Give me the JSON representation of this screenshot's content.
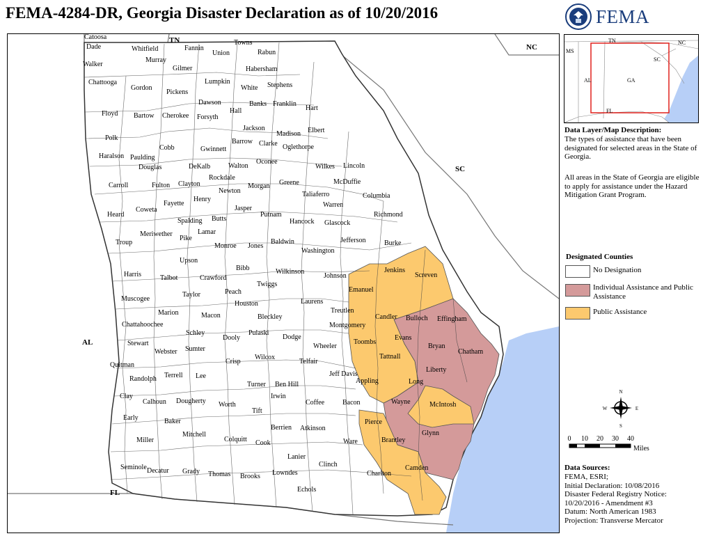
{
  "title": "FEMA-4284-DR, Georgia Disaster Declaration as of 10/20/2016",
  "logo": {
    "text": "FEMA"
  },
  "map": {
    "states": [
      "TN",
      "NC",
      "SC",
      "AL",
      "FL"
    ],
    "counties_none": [
      "Dade",
      "Catoosa",
      "Walker",
      "Whitfield",
      "Murray",
      "Fannin",
      "Union",
      "Towns",
      "Rabun",
      "Gilmer",
      "Chattooga",
      "Gordon",
      "Pickens",
      "Lumpkin",
      "White",
      "Habersham",
      "Stephens",
      "Floyd",
      "Bartow",
      "Cherokee",
      "Dawson",
      "Forsyth",
      "Hall",
      "Banks",
      "Franklin",
      "Hart",
      "Polk",
      "Cobb",
      "Gwinnett",
      "Jackson",
      "Madison",
      "Elbert",
      "Haralson",
      "Paulding",
      "Douglas",
      "Barrow",
      "Clarke",
      "Oglethorpe",
      "DeKalb",
      "Walton",
      "Oconee",
      "Wilkes",
      "Lincoln",
      "Carroll",
      "Fulton",
      "Clayton",
      "Rockdale",
      "Morgan",
      "Greene",
      "McDuffie",
      "Columbia",
      "Newton",
      "Henry",
      "Taliaferro",
      "Warren",
      "Richmond",
      "Heard",
      "Coweta",
      "Fayette",
      "Jasper",
      "Putnam",
      "Hancock",
      "Glascock",
      "Spalding",
      "Butts",
      "Meriwether",
      "Pike",
      "Lamar",
      "Monroe",
      "Jones",
      "Baldwin",
      "Washington",
      "Jefferson",
      "Burke",
      "Troup",
      "Upson",
      "Bibb",
      "Wilkinson",
      "Johnson",
      "Harris",
      "Talbot",
      "Crawford",
      "Twiggs",
      "Muscogee",
      "Taylor",
      "Peach",
      "Houston",
      "Laurens",
      "Marion",
      "Chattahoochee",
      "Macon",
      "Schley",
      "Bleckley",
      "Treutlen",
      "Stewart",
      "Webster",
      "Sumter",
      "Dooly",
      "Pulaski",
      "Dodge",
      "Wheeler",
      "Quitman",
      "Terrell",
      "Lee",
      "Crisp",
      "Wilcox",
      "Telfair",
      "Jeff Davis",
      "Randolph",
      "Clay",
      "Calhoun",
      "Dougherty",
      "Turner",
      "Ben Hill",
      "Irwin",
      "Coffee",
      "Bacon",
      "Worth",
      "Tift",
      "Early",
      "Baker",
      "Berrien",
      "Atkinson",
      "Ware",
      "Miller",
      "Mitchell",
      "Colquitt",
      "Cook",
      "Lanier",
      "Clinch",
      "Charlton",
      "Seminole",
      "Decatur",
      "Grady",
      "Thomas",
      "Brooks",
      "Lowndes",
      "Echols",
      "Montgomery",
      "Appling"
    ],
    "counties_ia_pa": [
      "Bulloch",
      "Effingham",
      "Bryan",
      "Chatham",
      "Liberty",
      "Wayne",
      "McIntosh",
      "Glynn"
    ],
    "counties_pa": [
      "Jenkins",
      "Screven",
      "Emanuel",
      "Candler",
      "Evans",
      "Toombs",
      "Tattnall",
      "Long",
      "Pierce",
      "Brantley",
      "Camden"
    ]
  },
  "inset": {
    "labels": [
      "TN",
      "NC",
      "MS",
      "SC",
      "GA",
      "AL",
      "FL"
    ]
  },
  "description": {
    "title": "Data Layer/Map Description:",
    "body": "The types of assistance that have been designated for selected areas in the State of Georgia.",
    "body2": "All areas in the State of Georgia are eligible to apply for assistance under the Hazard Mitigation Grant Program."
  },
  "legend": {
    "title": "Designated Counties",
    "items": [
      {
        "label": "No Designation",
        "color": "#ffffff"
      },
      {
        "label": "Individual Assistance and Public Assistance",
        "color": "#d49a9a"
      },
      {
        "label": "Public Assistance",
        "color": "#fcc96e"
      }
    ]
  },
  "scale": {
    "ticks": [
      "0",
      "10",
      "20",
      "30",
      "40"
    ],
    "unit": "Miles"
  },
  "compass": {
    "n": "N",
    "s": "S",
    "e": "E",
    "w": "W"
  },
  "sources": {
    "title": "Data Sources:",
    "lines": [
      "FEMA, ESRI;",
      "Initial Declaration: 10/08/2016",
      "Disaster Federal Registry Notice:",
      "10/20/2016 - Amendment #3",
      "Datum: North American 1983",
      "Projection: Transverse Mercator"
    ]
  },
  "colors": {
    "ocean": "#b7cff7",
    "ia_pa": "#d49a9a",
    "pa": "#fcc96e",
    "none": "#ffffff"
  }
}
